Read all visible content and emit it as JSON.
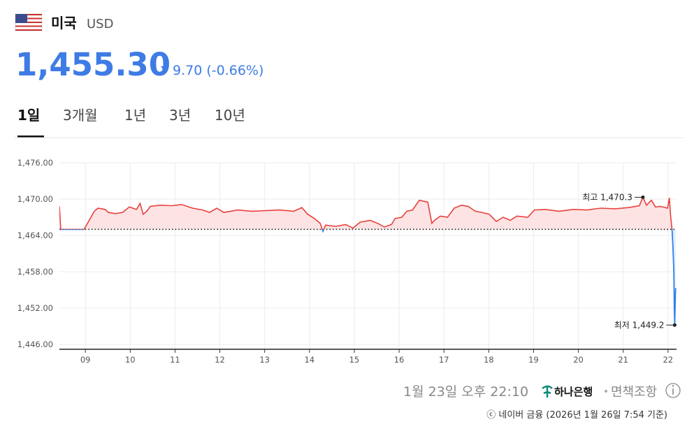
{
  "header": {
    "country": "미국",
    "currency": "USD",
    "price": "1,455.30",
    "change": "9.70 (-0.66%)"
  },
  "tabs": [
    "1일",
    "3개월",
    "1년",
    "3년",
    "10년"
  ],
  "active_tab": 0,
  "chart_data": {
    "type": "line",
    "x": [
      8.42,
      8.45,
      8.97,
      9.2,
      9.28,
      9.44,
      9.51,
      9.67,
      9.83,
      9.98,
      10.14,
      10.22,
      10.29,
      10.37,
      10.45,
      10.68,
      10.92,
      11.15,
      11.39,
      11.62,
      11.77,
      11.93,
      12.09,
      12.24,
      12.4,
      12.71,
      13.02,
      13.33,
      13.65,
      13.83,
      13.96,
      14.11,
      14.24,
      14.3,
      14.36,
      14.58,
      14.81,
      14.97,
      15.13,
      15.36,
      15.52,
      15.67,
      15.83,
      15.91,
      16.06,
      16.17,
      16.3,
      16.45,
      16.64,
      16.73,
      16.79,
      16.92,
      17.08,
      17.23,
      17.39,
      17.54,
      17.7,
      17.85,
      18.01,
      18.17,
      18.32,
      18.48,
      18.63,
      18.87,
      19.02,
      19.26,
      19.57,
      19.88,
      20.19,
      20.5,
      20.82,
      21.13,
      21.36,
      21.44,
      21.52,
      21.63,
      21.72,
      21.83,
      21.99,
      22.03,
      22.06,
      22.09,
      22.11,
      22.13,
      22.14,
      22.15,
      22.16,
      22.17
    ],
    "values": [
      1468.8,
      1465.0,
      1465.0,
      1468.0,
      1468.5,
      1468.3,
      1467.8,
      1467.6,
      1467.8,
      1468.7,
      1468.3,
      1469.3,
      1467.5,
      1468.0,
      1468.8,
      1469.0,
      1468.9,
      1469.1,
      1468.5,
      1468.2,
      1467.8,
      1468.5,
      1467.8,
      1468.0,
      1468.2,
      1468.0,
      1468.1,
      1468.2,
      1468.0,
      1468.6,
      1467.5,
      1466.8,
      1466.0,
      1464.7,
      1465.7,
      1465.5,
      1465.8,
      1465.2,
      1466.2,
      1466.5,
      1466.0,
      1465.4,
      1465.8,
      1466.8,
      1467.0,
      1468.0,
      1468.2,
      1469.8,
      1469.5,
      1466.0,
      1466.5,
      1467.2,
      1467.0,
      1468.5,
      1469.0,
      1468.8,
      1468.0,
      1467.8,
      1467.5,
      1466.3,
      1467.0,
      1466.5,
      1467.2,
      1467.0,
      1468.2,
      1468.3,
      1468.0,
      1468.3,
      1468.2,
      1468.5,
      1468.4,
      1468.6,
      1468.9,
      1470.3,
      1469.0,
      1469.8,
      1468.7,
      1468.8,
      1468.5,
      1470.2,
      1467.0,
      1465.0,
      1462.0,
      1458.0,
      1452.0,
      1449.2,
      1453.0,
      1455.3
    ],
    "baseline": 1465.0,
    "up_color": "#e8423e",
    "down_color": "#2f80ed",
    "up_fill": "#fde3e3",
    "down_fill": "#e3eefd",
    "xlim": [
      8.42,
      22.19
    ],
    "ylim": [
      1445.2,
      1476
    ],
    "xticks": [
      {
        "value": 9,
        "label": "09"
      },
      10,
      11,
      12,
      13,
      14,
      15,
      16,
      17,
      18,
      19,
      20,
      21,
      22
    ],
    "yticks": [
      {
        "value": 1446,
        "label": "1,446.00"
      },
      {
        "value": 1452,
        "label": "1,452.00"
      },
      {
        "value": 1458,
        "label": "1,458.00"
      },
      {
        "value": 1464,
        "label": "1,464.00"
      },
      {
        "value": 1470,
        "label": "1,470.00"
      },
      {
        "value": 1476,
        "label": "1,476.00"
      }
    ],
    "grid": true,
    "annotations": [
      {
        "text": "최고 1,470.3",
        "x": 21.44,
        "value": 1470.3
      },
      {
        "text": "최저 1,449.2",
        "x": 22.15,
        "value": 1449.2
      }
    ]
  },
  "footer": {
    "time": "1월 23일 오후 22:10",
    "bank": "하나은행",
    "disclaimer": "면책조항",
    "source": "ⓒ 네이버 금융 (2026년 1월 26일 7:54 기준)"
  }
}
